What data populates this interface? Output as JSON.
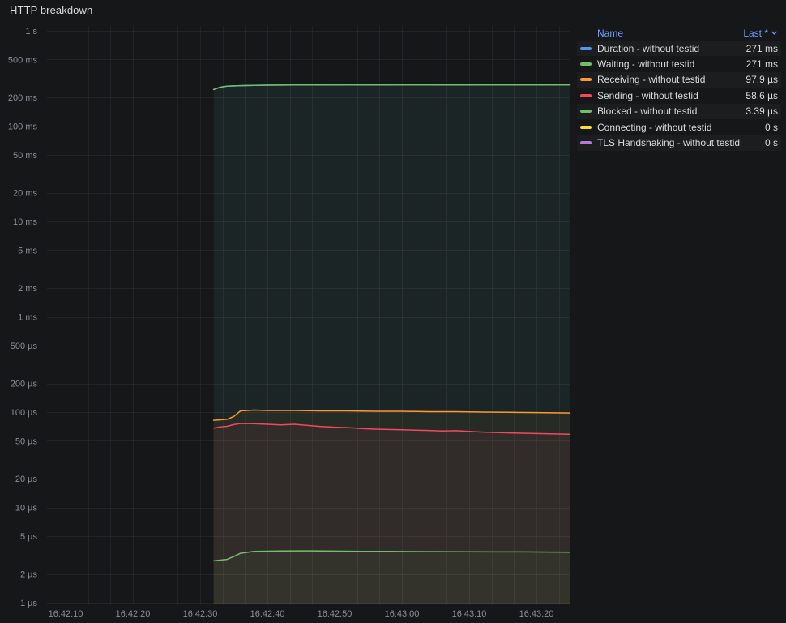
{
  "panel": {
    "title": "HTTP breakdown"
  },
  "legend": {
    "name_header": "Name",
    "last_header": "Last *",
    "items": [
      {
        "label": "Duration - without testid",
        "value": "271 ms",
        "color": "#5794F2"
      },
      {
        "label": "Waiting - without testid",
        "value": "271 ms",
        "color": "#73BF69"
      },
      {
        "label": "Receiving - without testid",
        "value": "97.9 µs",
        "color": "#FF9830"
      },
      {
        "label": "Sending - without testid",
        "value": "58.6 µs",
        "color": "#F2495C"
      },
      {
        "label": "Blocked - without testid",
        "value": "3.39 µs",
        "color": "#73BF69"
      },
      {
        "label": "Connecting - without testid",
        "value": "0 s",
        "color": "#FADE2A"
      },
      {
        "label": "TLS Handshaking - without testid",
        "value": "0 s",
        "color": "#B877D9"
      }
    ]
  },
  "chart_data": {
    "type": "line",
    "title": "HTTP breakdown",
    "y_scale": "log",
    "y_unit": "seconds",
    "ylim": [
      1e-06,
      1
    ],
    "grid": true,
    "legend_position": "right-table",
    "y_ticks": [
      {
        "v": 1,
        "label": "1 s"
      },
      {
        "v": 0.5,
        "label": "500 ms"
      },
      {
        "v": 0.2,
        "label": "200 ms"
      },
      {
        "v": 0.1,
        "label": "100 ms"
      },
      {
        "v": 0.05,
        "label": "50 ms"
      },
      {
        "v": 0.02,
        "label": "20 ms"
      },
      {
        "v": 0.01,
        "label": "10 ms"
      },
      {
        "v": 0.005,
        "label": "5 ms"
      },
      {
        "v": 0.002,
        "label": "2 ms"
      },
      {
        "v": 0.001,
        "label": "1 ms"
      },
      {
        "v": 0.0005,
        "label": "500 µs"
      },
      {
        "v": 0.0002,
        "label": "200 µs"
      },
      {
        "v": 0.0001,
        "label": "100 µs"
      },
      {
        "v": 5e-05,
        "label": "50 µs"
      },
      {
        "v": 2e-05,
        "label": "20 µs"
      },
      {
        "v": 1e-05,
        "label": "10 µs"
      },
      {
        "v": 5e-06,
        "label": "5 µs"
      },
      {
        "v": 2e-06,
        "label": "2 µs"
      },
      {
        "v": 1e-06,
        "label": "1 µs"
      }
    ],
    "x_ticks": [
      {
        "t": 0,
        "label": "16:42:10"
      },
      {
        "t": 10,
        "label": "16:42:20"
      },
      {
        "t": 20,
        "label": "16:42:30"
      },
      {
        "t": 30,
        "label": "16:42:40"
      },
      {
        "t": 40,
        "label": "16:42:50"
      },
      {
        "t": 50,
        "label": "16:43:00"
      },
      {
        "t": 60,
        "label": "16:43:10"
      },
      {
        "t": 70,
        "label": "16:43:20"
      }
    ],
    "series": [
      {
        "id": "duration",
        "name": "Duration - without testid",
        "color": "#5794F2",
        "last": "271 ms",
        "points": [
          [
            22,
            0.242
          ],
          [
            23,
            0.256
          ],
          [
            24,
            0.262
          ],
          [
            26,
            0.266
          ],
          [
            28,
            0.268
          ],
          [
            30,
            0.269
          ],
          [
            34,
            0.27
          ],
          [
            38,
            0.27
          ],
          [
            42,
            0.271
          ],
          [
            46,
            0.27
          ],
          [
            50,
            0.271
          ],
          [
            54,
            0.271
          ],
          [
            58,
            0.27
          ],
          [
            62,
            0.271
          ],
          [
            66,
            0.271
          ],
          [
            70,
            0.271
          ],
          [
            75,
            0.271
          ]
        ]
      },
      {
        "id": "waiting",
        "name": "Waiting - without testid",
        "color": "#73BF69",
        "last": "271 ms",
        "points": [
          [
            22,
            0.242
          ],
          [
            23,
            0.256
          ],
          [
            24,
            0.262
          ],
          [
            26,
            0.266
          ],
          [
            28,
            0.268
          ],
          [
            30,
            0.269
          ],
          [
            34,
            0.27
          ],
          [
            38,
            0.27
          ],
          [
            42,
            0.271
          ],
          [
            46,
            0.27
          ],
          [
            50,
            0.271
          ],
          [
            54,
            0.271
          ],
          [
            58,
            0.27
          ],
          [
            62,
            0.271
          ],
          [
            66,
            0.271
          ],
          [
            70,
            0.271
          ],
          [
            75,
            0.271
          ]
        ]
      },
      {
        "id": "receiving",
        "name": "Receiving - without testid",
        "color": "#FF9830",
        "last": "97.9 µs",
        "points": [
          [
            22,
            8.2e-05
          ],
          [
            23,
            8.3e-05
          ],
          [
            24,
            8.4e-05
          ],
          [
            25,
            9e-05
          ],
          [
            26,
            0.000103
          ],
          [
            28,
            0.000105
          ],
          [
            30,
            0.000104
          ],
          [
            34,
            0.000104
          ],
          [
            38,
            0.000103
          ],
          [
            42,
            0.000103
          ],
          [
            46,
            0.000102
          ],
          [
            50,
            0.000102
          ],
          [
            54,
            0.000101
          ],
          [
            58,
            0.000101
          ],
          [
            62,
            0.0001
          ],
          [
            66,
            9.95e-05
          ],
          [
            70,
            9.88e-05
          ],
          [
            75,
            9.79e-05
          ]
        ]
      },
      {
        "id": "sending",
        "name": "Sending - without testid",
        "color": "#F2495C",
        "last": "58.6 µs",
        "points": [
          [
            22,
            6.8e-05
          ],
          [
            23,
            7e-05
          ],
          [
            24,
            7.1e-05
          ],
          [
            25,
            7.4e-05
          ],
          [
            26,
            7.6e-05
          ],
          [
            28,
            7.55e-05
          ],
          [
            30,
            7.45e-05
          ],
          [
            32,
            7.35e-05
          ],
          [
            34,
            7.45e-05
          ],
          [
            36,
            7.25e-05
          ],
          [
            38,
            7.05e-05
          ],
          [
            40,
            6.95e-05
          ],
          [
            42,
            6.88e-05
          ],
          [
            44,
            6.72e-05
          ],
          [
            46,
            6.63e-05
          ],
          [
            48,
            6.57e-05
          ],
          [
            50,
            6.52e-05
          ],
          [
            52,
            6.47e-05
          ],
          [
            54,
            6.42e-05
          ],
          [
            56,
            6.33e-05
          ],
          [
            58,
            6.38e-05
          ],
          [
            60,
            6.27e-05
          ],
          [
            62,
            6.17e-05
          ],
          [
            64,
            6.11e-05
          ],
          [
            66,
            6.06e-05
          ],
          [
            68,
            6.01e-05
          ],
          [
            70,
            5.96e-05
          ],
          [
            72,
            5.91e-05
          ],
          [
            75,
            5.86e-05
          ]
        ]
      },
      {
        "id": "blocked",
        "name": "Blocked - without testid",
        "color": "#73BF69",
        "last": "3.39 µs",
        "points": [
          [
            22,
            2.75e-06
          ],
          [
            23,
            2.8e-06
          ],
          [
            24,
            2.85e-06
          ],
          [
            25,
            3.05e-06
          ],
          [
            26,
            3.3e-06
          ],
          [
            28,
            3.45e-06
          ],
          [
            32,
            3.49e-06
          ],
          [
            36,
            3.5e-06
          ],
          [
            40,
            3.48e-06
          ],
          [
            44,
            3.46e-06
          ],
          [
            48,
            3.45e-06
          ],
          [
            52,
            3.44e-06
          ],
          [
            56,
            3.43e-06
          ],
          [
            60,
            3.42e-06
          ],
          [
            64,
            3.41e-06
          ],
          [
            68,
            3.41e-06
          ],
          [
            72,
            3.4e-06
          ],
          [
            75,
            3.39e-06
          ]
        ]
      },
      {
        "id": "connecting",
        "name": "Connecting - without testid",
        "color": "#FADE2A",
        "last": "0 s",
        "points": []
      },
      {
        "id": "tls-handshaking",
        "name": "TLS Handshaking - without testid",
        "color": "#B877D9",
        "last": "0 s",
        "points": []
      }
    ]
  }
}
